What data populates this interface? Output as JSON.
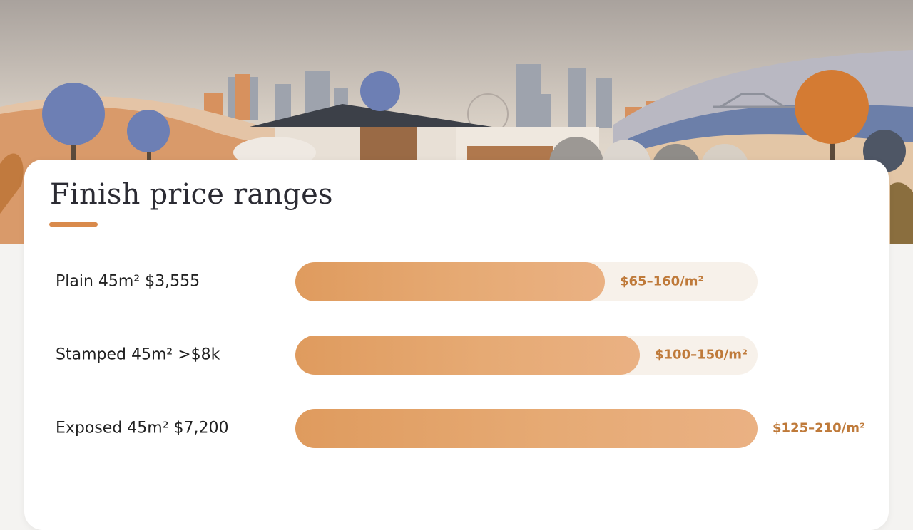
{
  "header": {
    "title": "Finish price ranges"
  },
  "colors": {
    "bar": "#e2a26a",
    "track": "#f7f1ea",
    "range_text": "#bf7a3a",
    "accent": "#d98a4b"
  },
  "icons": [
    "city-skyline-illustration",
    "house-illustration",
    "concrete-mixer-illustration",
    "concrete-sample-discs",
    "trees-illustration"
  ],
  "chart_data": {
    "type": "bar",
    "orientation": "horizontal",
    "title": "Finish price ranges",
    "categories": [
      "Plain 45m² $3,555",
      "Stamped 45m² >$8k",
      "Exposed 45m² $7,200"
    ],
    "series": [
      {
        "values": [
          0.67,
          0.745,
          1.0
        ],
        "labels": [
          "$65–160/m²",
          "$100–150/m²",
          "$125–210/m²"
        ]
      }
    ],
    "grid": false
  }
}
